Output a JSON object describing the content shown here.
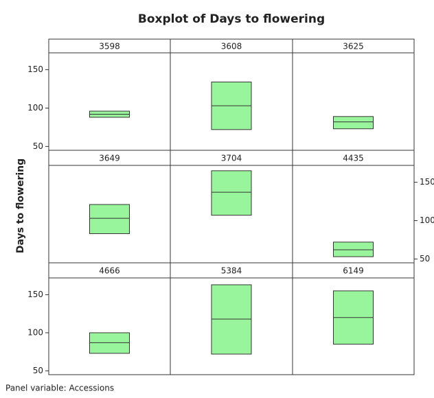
{
  "chart_data": {
    "type": "boxplot",
    "title": "Boxplot of Days to flowering",
    "ylabel": "Days to flowering",
    "footnote": "Panel variable: Accessions",
    "color": "#99f59b",
    "ylim": [
      45,
      172
    ],
    "yticks": [
      50,
      100,
      150
    ],
    "panels": [
      {
        "label": "3598",
        "q1": 88,
        "median": 92,
        "q3": 96
      },
      {
        "label": "3608",
        "q1": 72,
        "median": 103,
        "q3": 134
      },
      {
        "label": "3625",
        "q1": 73,
        "median": 82,
        "q3": 89
      },
      {
        "label": "3649",
        "q1": 83,
        "median": 103,
        "q3": 121
      },
      {
        "label": "3704",
        "q1": 107,
        "median": 137,
        "q3": 165
      },
      {
        "label": "4435",
        "q1": 53,
        "median": 62,
        "q3": 72
      },
      {
        "label": "4666",
        "q1": 73,
        "median": 87,
        "q3": 100
      },
      {
        "label": "5384",
        "q1": 72,
        "median": 118,
        "q3": 163
      },
      {
        "label": "6149",
        "q1": 85,
        "median": 120,
        "q3": 155
      }
    ]
  }
}
